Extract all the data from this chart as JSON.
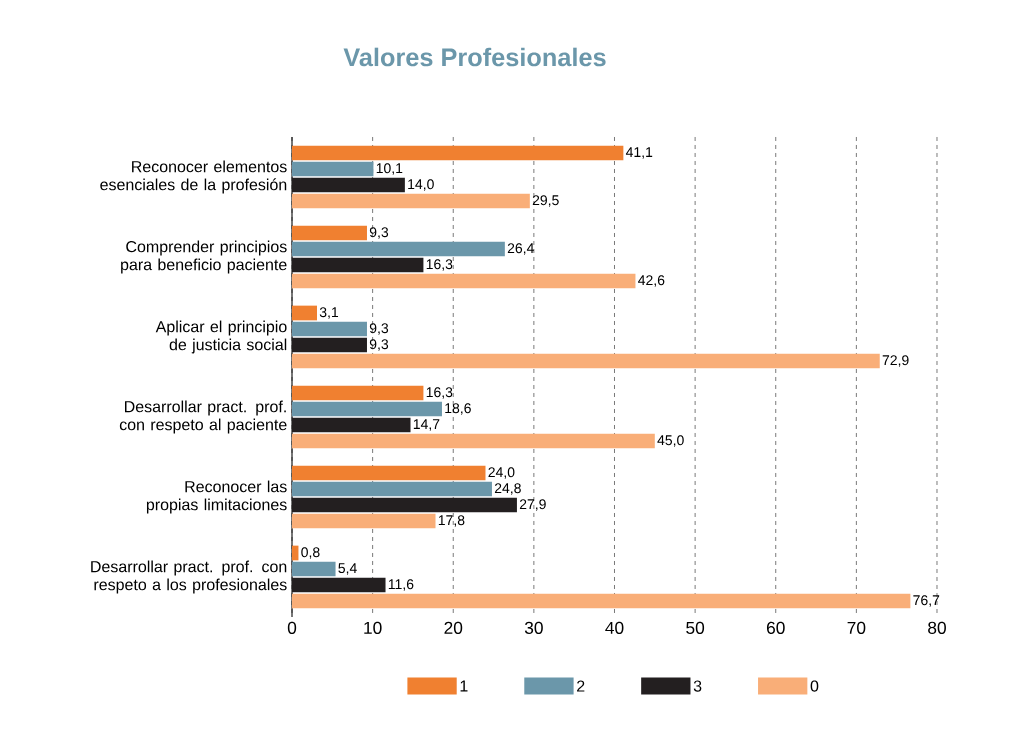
{
  "chart_data": {
    "type": "bar",
    "orientation": "horizontal",
    "title": "Valores Profesionales",
    "categories": [
      "Reconocer elementos esenciales de la profesión",
      "Comprender principios para beneficio paciente",
      "Aplicar el principio de justicia social",
      "Desarrollar pract. prof. con respeto al paciente",
      "Reconocer las propias limitaciones",
      "Desarrollar pract. prof. con respeto a los profesionales"
    ],
    "series": [
      {
        "name": "1",
        "color": "#f08030",
        "values": [
          41.1,
          9.3,
          3.1,
          16.3,
          24.0,
          0.8
        ],
        "value_labels": [
          "41,1",
          "9,3",
          "3,1",
          "16,3",
          "24,0",
          "0,8"
        ]
      },
      {
        "name": "2",
        "color": "#6b97aa",
        "values": [
          10.1,
          26.4,
          9.3,
          18.6,
          24.8,
          5.4
        ],
        "value_labels": [
          "10,1",
          "26,4",
          "9,3",
          "18,6",
          "24,8",
          "5,4"
        ]
      },
      {
        "name": "3",
        "color": "#231f20",
        "values": [
          14.0,
          16.3,
          9.3,
          14.7,
          27.9,
          11.6
        ],
        "value_labels": [
          "14,0",
          "16,3",
          "9,3",
          "14,7",
          "27,9",
          "11,6"
        ]
      },
      {
        "name": "0",
        "color": "#f9ae78",
        "values": [
          29.5,
          42.6,
          72.9,
          45.0,
          17.8,
          76.7
        ],
        "value_labels": [
          "29,5",
          "42,6",
          "72,9",
          "45,0",
          "17,8",
          "76,7"
        ]
      }
    ],
    "xlim": [
      0,
      80
    ],
    "xticks": [
      0,
      10,
      20,
      30,
      40,
      50,
      60,
      70,
      80
    ],
    "grid": "x",
    "legend": "bottom"
  }
}
